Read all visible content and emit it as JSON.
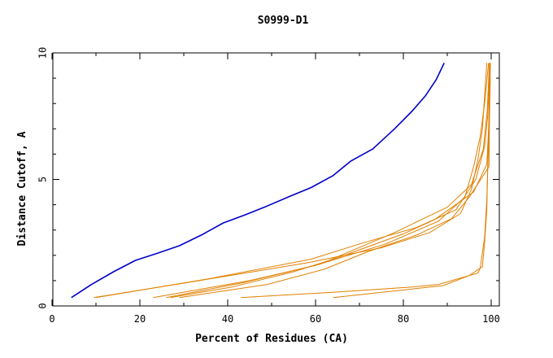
{
  "chart_data": {
    "type": "line",
    "title": "S0999-D1",
    "xlabel": "Percent of Residues (CA)",
    "ylabel": "Distance Cutoff, A",
    "xlim": [
      0,
      100
    ],
    "ylim": [
      0,
      10
    ],
    "x_ticks": [
      0,
      20,
      40,
      60,
      80,
      100
    ],
    "y_ticks": [
      0,
      5,
      10
    ],
    "grid": false,
    "colors": {
      "primary": "#0000cc",
      "others": "#e08000"
    },
    "series": [
      {
        "color": "#0000cc",
        "points": [
          [
            4.4,
            0.33
          ],
          [
            9,
            0.85
          ],
          [
            14,
            1.35
          ],
          [
            19,
            1.8
          ],
          [
            24,
            2.08
          ],
          [
            29,
            2.38
          ],
          [
            34,
            2.8
          ],
          [
            39,
            3.28
          ],
          [
            44,
            3.6
          ],
          [
            49,
            3.95
          ],
          [
            54,
            4.32
          ],
          [
            59,
            4.68
          ],
          [
            64,
            5.15
          ],
          [
            68,
            5.72
          ],
          [
            73,
            6.2
          ],
          [
            78,
            7.0
          ],
          [
            82,
            7.7
          ],
          [
            85,
            8.3
          ],
          [
            87.5,
            8.95
          ],
          [
            89.3,
            9.6
          ]
        ]
      },
      {
        "color": "#e08000",
        "points": [
          [
            9.5,
            0.33
          ],
          [
            30,
            0.9
          ],
          [
            58,
            1.7
          ],
          [
            75,
            2.3
          ],
          [
            86,
            2.9
          ],
          [
            93,
            3.65
          ],
          [
            95.5,
            4.6
          ],
          [
            97,
            5.8
          ],
          [
            98,
            7.0
          ],
          [
            98.5,
            8.3
          ],
          [
            99,
            9.6
          ]
        ]
      },
      {
        "color": "#e08000",
        "points": [
          [
            10,
            0.33
          ],
          [
            35,
            1.05
          ],
          [
            59,
            1.85
          ],
          [
            70,
            2.45
          ],
          [
            83,
            3.1
          ],
          [
            92,
            3.8
          ],
          [
            96.5,
            5.0
          ],
          [
            98.5,
            6.3
          ],
          [
            99.2,
            7.5
          ],
          [
            99.5,
            8.6
          ],
          [
            99.7,
            9.6
          ]
        ]
      },
      {
        "color": "#e08000",
        "points": [
          [
            23,
            0.33
          ],
          [
            45,
            1.0
          ],
          [
            60,
            1.6
          ],
          [
            76,
            2.45
          ],
          [
            88,
            3.35
          ],
          [
            94,
            4.3
          ],
          [
            96,
            5.5
          ],
          [
            97.5,
            6.7
          ],
          [
            98.5,
            8.0
          ],
          [
            99.4,
            9.6
          ]
        ]
      },
      {
        "color": "#e08000",
        "points": [
          [
            26,
            0.33
          ],
          [
            43,
            0.9
          ],
          [
            61,
            1.65
          ],
          [
            78,
            2.9
          ],
          [
            90,
            3.9
          ],
          [
            95.5,
            4.8
          ],
          [
            98.2,
            6.2
          ],
          [
            99.1,
            7.7
          ],
          [
            99.6,
            9.6
          ]
        ]
      },
      {
        "color": "#e08000",
        "points": [
          [
            27,
            0.33
          ],
          [
            41,
            0.75
          ],
          [
            55,
            1.35
          ],
          [
            65,
            1.9
          ],
          [
            80,
            2.85
          ],
          [
            87,
            3.4
          ],
          [
            96,
            4.5
          ],
          [
            99,
            5.6
          ],
          [
            99.4,
            7.0
          ],
          [
            99.7,
            8.5
          ],
          [
            99.8,
            9.6
          ]
        ]
      },
      {
        "color": "#e08000",
        "points": [
          [
            29,
            0.33
          ],
          [
            49,
            0.85
          ],
          [
            62,
            1.45
          ],
          [
            72,
            2.15
          ],
          [
            83,
            2.8
          ],
          [
            91,
            3.45
          ],
          [
            95,
            4.3
          ],
          [
            99.5,
            5.5
          ],
          [
            99.6,
            7.2
          ],
          [
            99.8,
            9.0
          ]
        ]
      },
      {
        "color": "#e08000",
        "points": [
          [
            43,
            0.33
          ],
          [
            65,
            0.55
          ],
          [
            82,
            0.75
          ],
          [
            88,
            0.85
          ],
          [
            94,
            1.15
          ],
          [
            97,
            1.3
          ],
          [
            97.5,
            1.5
          ],
          [
            98.5,
            2.7
          ],
          [
            99,
            4.2
          ],
          [
            99.4,
            6.5
          ],
          [
            99.7,
            9.6
          ]
        ]
      },
      {
        "color": "#e08000",
        "points": [
          [
            64,
            0.33
          ],
          [
            89,
            0.8
          ],
          [
            95,
            1.2
          ],
          [
            98,
            1.55
          ],
          [
            98.5,
            2.5
          ],
          [
            99,
            3.8
          ],
          [
            99.2,
            5.5
          ],
          [
            99.5,
            7.3
          ],
          [
            99.8,
            9.6
          ]
        ]
      }
    ]
  }
}
